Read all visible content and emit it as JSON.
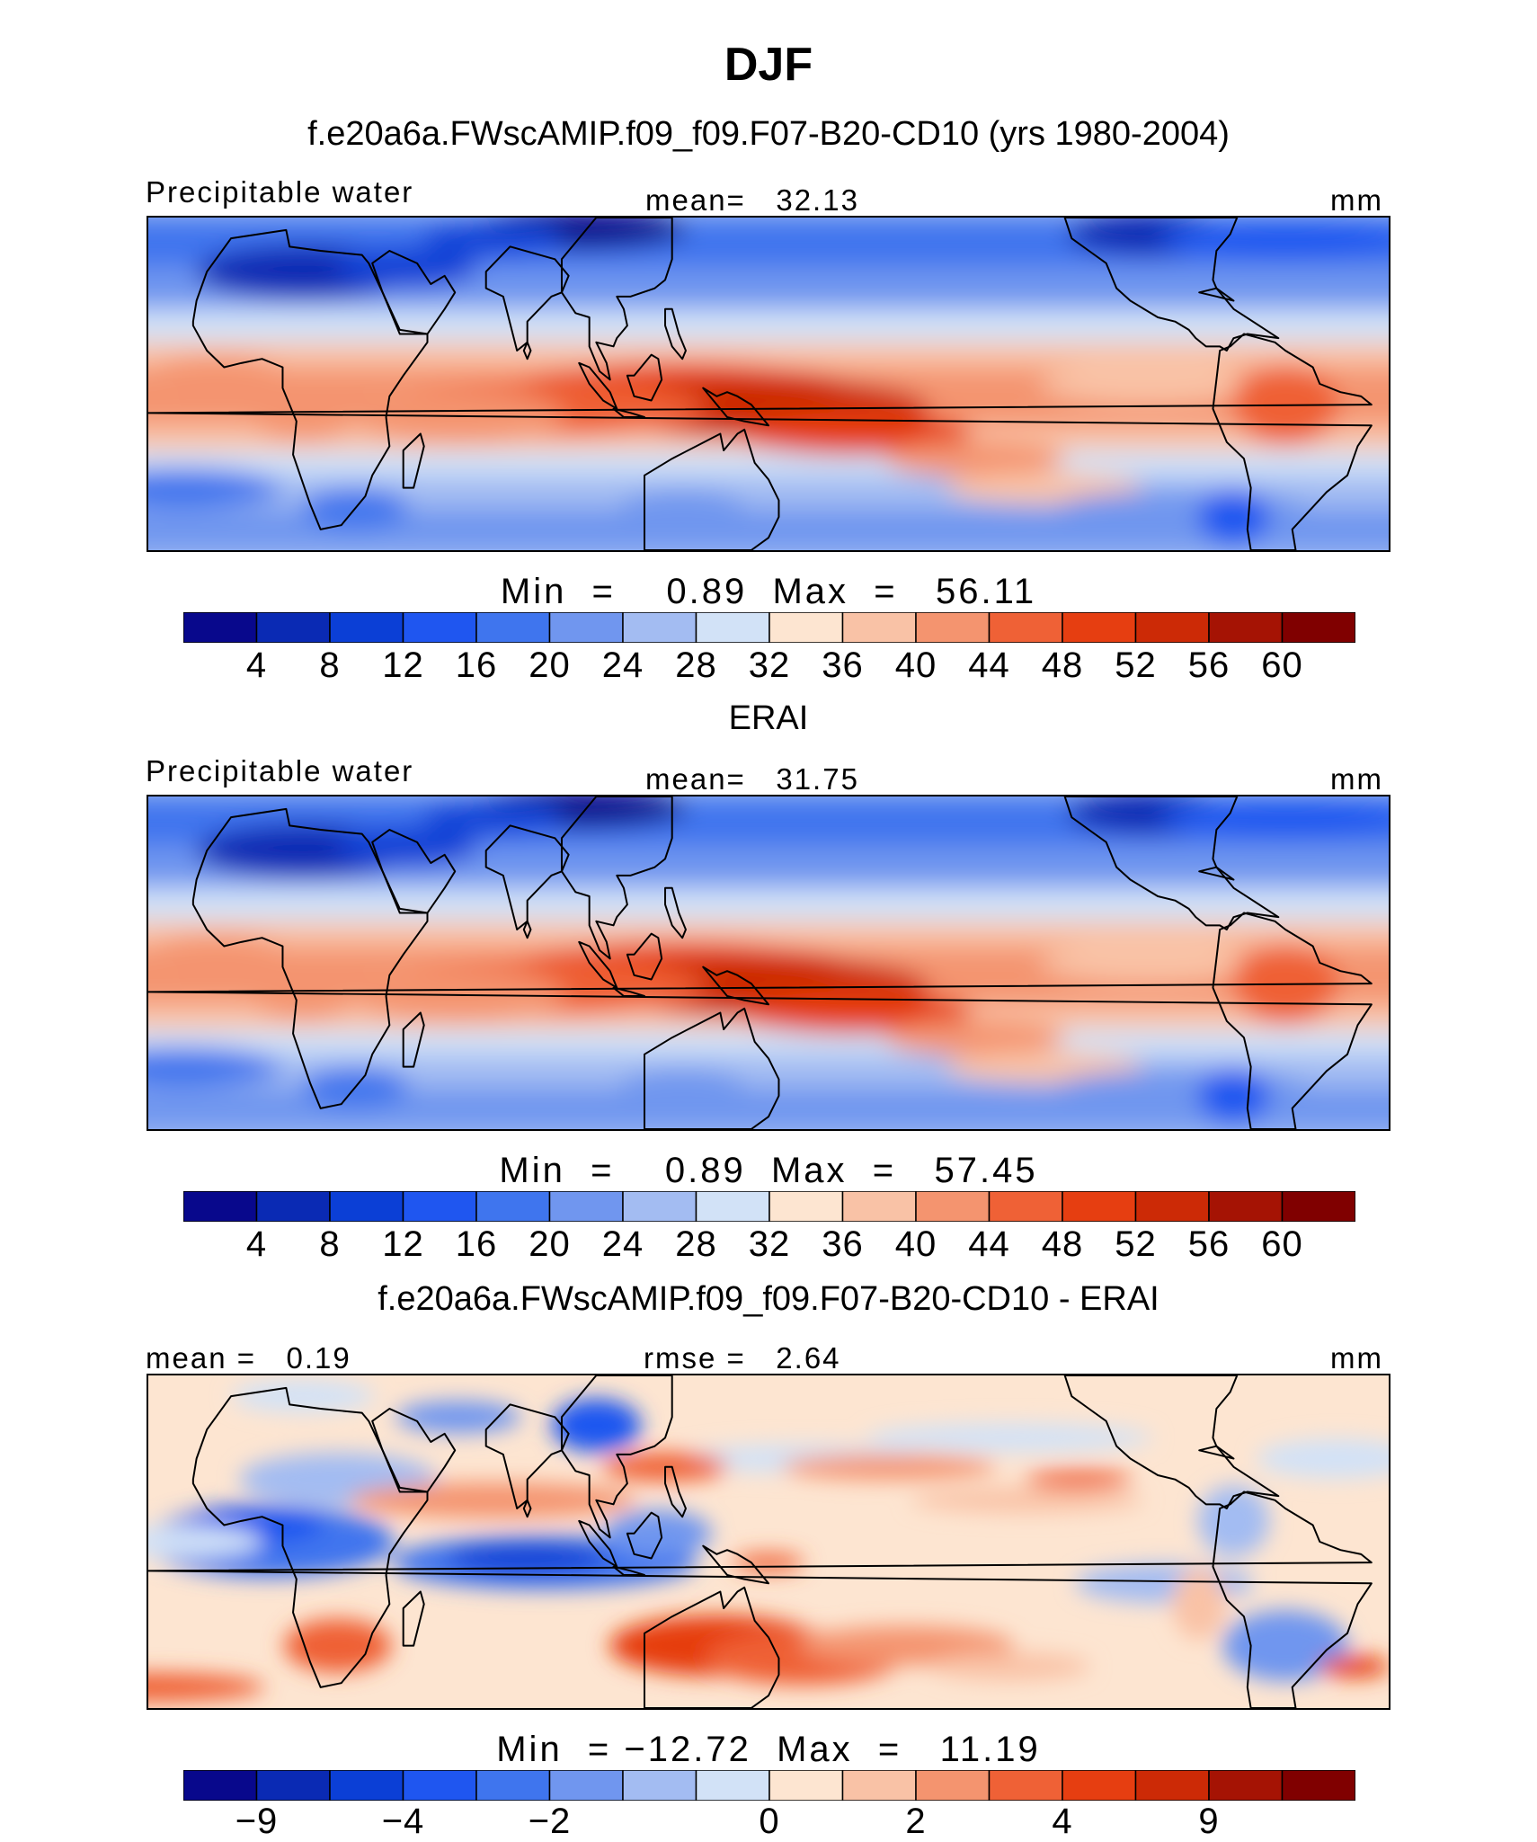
{
  "title": "DJF",
  "colors": {
    "levels": [
      "#08088c",
      "#0a2ab4",
      "#0b3fd6",
      "#1f56f0",
      "#3f75ee",
      "#7096ef",
      "#a3bcf2",
      "#d2e2f7",
      "#fde5d1",
      "#f9c2a6",
      "#f4946f",
      "#ef6136",
      "#e63e11",
      "#cc2a06",
      "#a51304",
      "#800000"
    ]
  },
  "chart_data": [
    {
      "type": "heatmap",
      "title": "f.e20a6a.FWscAMIP.f09_f09.F07-B20-CD10 (yrs 1980-2004)",
      "left_label": "Precipitable water",
      "mean_label": "mean=",
      "mean": "32.13",
      "units": "mm",
      "min_label": "Min",
      "min": "0.89",
      "max_label": "Max",
      "max": "56.11",
      "colorbar_ticks": [
        "4",
        "8",
        "12",
        "16",
        "20",
        "24",
        "28",
        "32",
        "36",
        "40",
        "44",
        "48",
        "52",
        "56",
        "60"
      ]
    },
    {
      "type": "heatmap",
      "title": "ERAI",
      "left_label": "Precipitable water",
      "mean_label": "mean=",
      "mean": "31.75",
      "units": "mm",
      "min_label": "Min",
      "min": "0.89",
      "max_label": "Max",
      "max": "57.45",
      "colorbar_ticks": [
        "4",
        "8",
        "12",
        "16",
        "20",
        "24",
        "28",
        "32",
        "36",
        "40",
        "44",
        "48",
        "52",
        "56",
        "60"
      ]
    },
    {
      "type": "heatmap",
      "title": "f.e20a6a.FWscAMIP.f09_f09.F07-B20-CD10 - ERAI",
      "left_label": "mean =",
      "left_value": "0.19",
      "rmse_label": "rmse =",
      "rmse": "2.64",
      "units": "mm",
      "min_label": "Min",
      "min": "−12.72",
      "max_label": "Max",
      "max": "11.19",
      "colorbar_ticks": [
        "−9",
        "−4",
        "−2",
        "0",
        "2",
        "4",
        "9"
      ]
    }
  ]
}
